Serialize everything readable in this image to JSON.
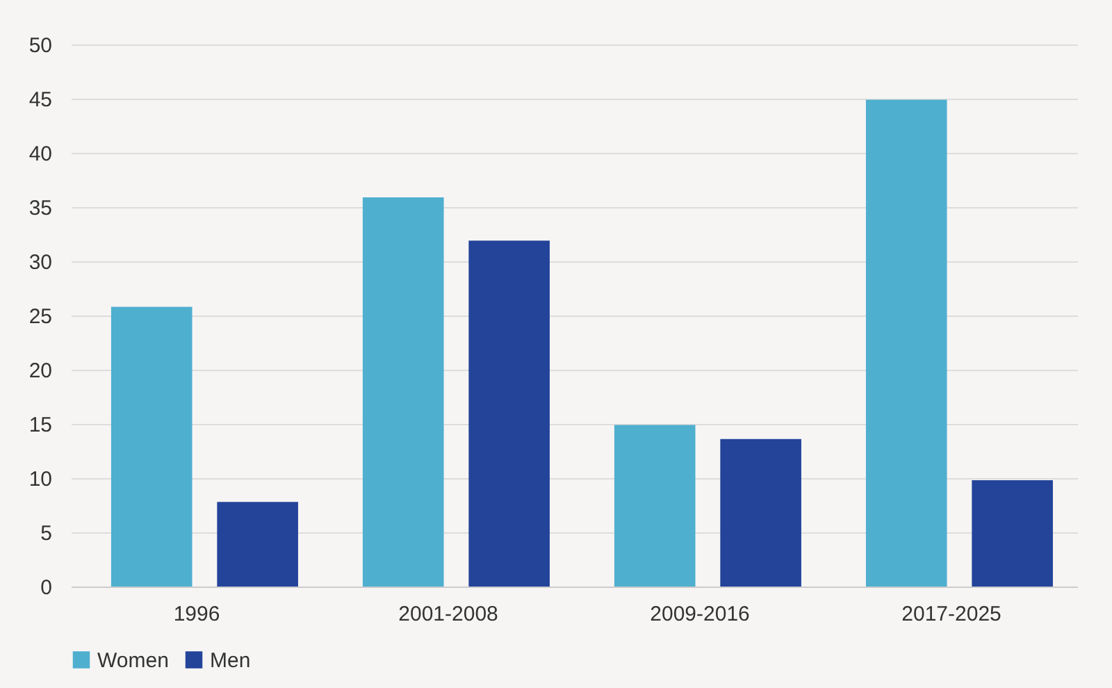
{
  "chart_data": {
    "type": "bar",
    "categories": [
      "1996",
      "2001-2008",
      "2009-2016",
      "2017-2025"
    ],
    "series": [
      {
        "name": "Women",
        "color": "#4fafcf",
        "values": [
          25.8,
          35.9,
          14.9,
          44.9
        ]
      },
      {
        "name": "Men",
        "color": "#24449a",
        "values": [
          7.8,
          31.9,
          13.6,
          9.8
        ]
      }
    ],
    "ylim": [
      0,
      50
    ],
    "yticks": [
      0,
      5,
      10,
      15,
      20,
      25,
      30,
      35,
      40,
      45,
      50
    ],
    "grid": "y",
    "legend": "bottom"
  }
}
